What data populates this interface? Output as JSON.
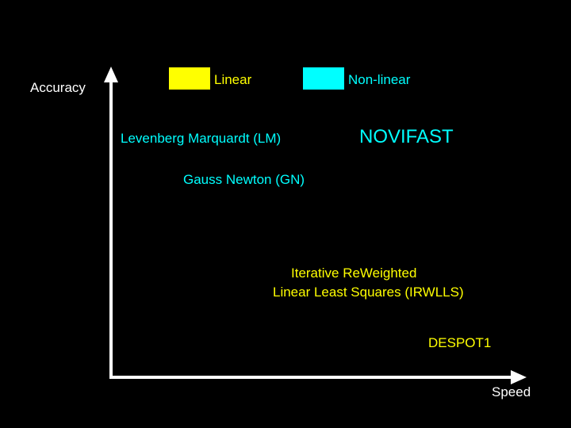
{
  "axes": {
    "y_label": "Accuracy",
    "x_label": "Speed",
    "color": "#ffffff"
  },
  "legend": [
    {
      "label": "Linear",
      "color": "#ffff00"
    },
    {
      "label": "Non-linear",
      "color": "#00ffff"
    }
  ],
  "methods": {
    "lm": {
      "label": "Levenberg Marquardt (LM)",
      "category": "Non-linear",
      "color": "#00ffff"
    },
    "novifast": {
      "label": "NOVIFAST",
      "category": "Non-linear",
      "color": "#00ffff"
    },
    "gn": {
      "label": "Gauss Newton (GN)",
      "category": "Non-linear",
      "color": "#00ffff"
    },
    "irwlls": {
      "label_line1": "Iterative ReWeighted",
      "label_line2": "Linear Least Squares (IRWLLS)",
      "category": "Linear",
      "color": "#ffff00"
    },
    "despot1": {
      "label": "DESPOT1",
      "category": "Linear",
      "color": "#ffff00"
    }
  }
}
